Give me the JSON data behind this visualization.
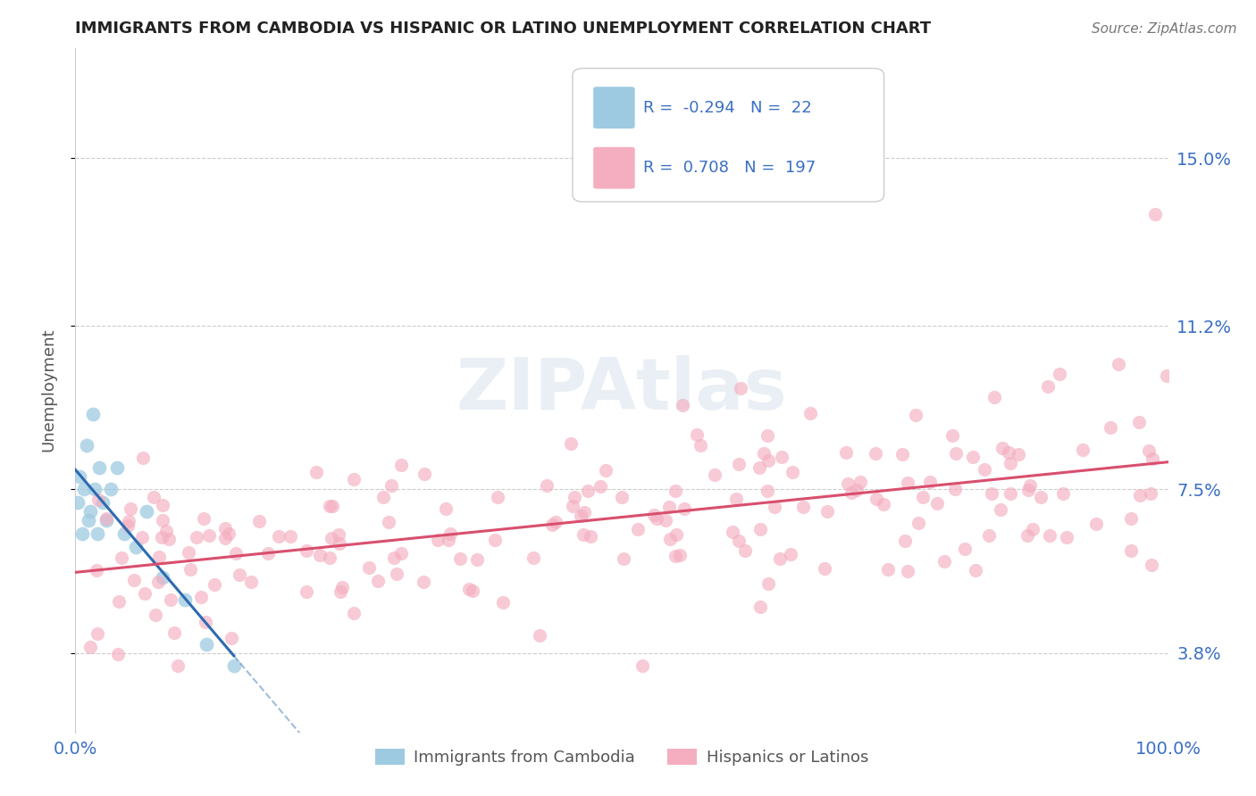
{
  "title": "IMMIGRANTS FROM CAMBODIA VS HISPANIC OR LATINO UNEMPLOYMENT CORRELATION CHART",
  "source": "Source: ZipAtlas.com",
  "ylabel": "Unemployment",
  "xlim": [
    0.0,
    100.0
  ],
  "ylim": [
    2.0,
    17.5
  ],
  "ytick_vals": [
    3.8,
    7.5,
    11.2,
    15.0
  ],
  "ytick_labels": [
    "3.8%",
    "7.5%",
    "11.2%",
    "15.0%"
  ],
  "xtick_vals": [
    0.0,
    25.0,
    50.0,
    75.0,
    100.0
  ],
  "xtick_labels": [
    "0.0%",
    "",
    "",
    "",
    "100.0%"
  ],
  "background_color": "#ffffff",
  "watermark": "ZIPAtlas",
  "legend": {
    "cambodia_R": "-0.294",
    "cambodia_N": "22",
    "hispanic_R": "0.708",
    "hispanic_N": "197"
  },
  "cambodia_color": "#9ecae1",
  "hispanic_color": "#f4aec0",
  "cambodia_line_color": "#2c6bb0",
  "hispanic_line_color": "#d94f6e",
  "grid_color": "#cccccc",
  "tick_color": "#3a6fc4",
  "ylabel_color": "#555555",
  "title_color": "#222222",
  "source_color": "#777777"
}
